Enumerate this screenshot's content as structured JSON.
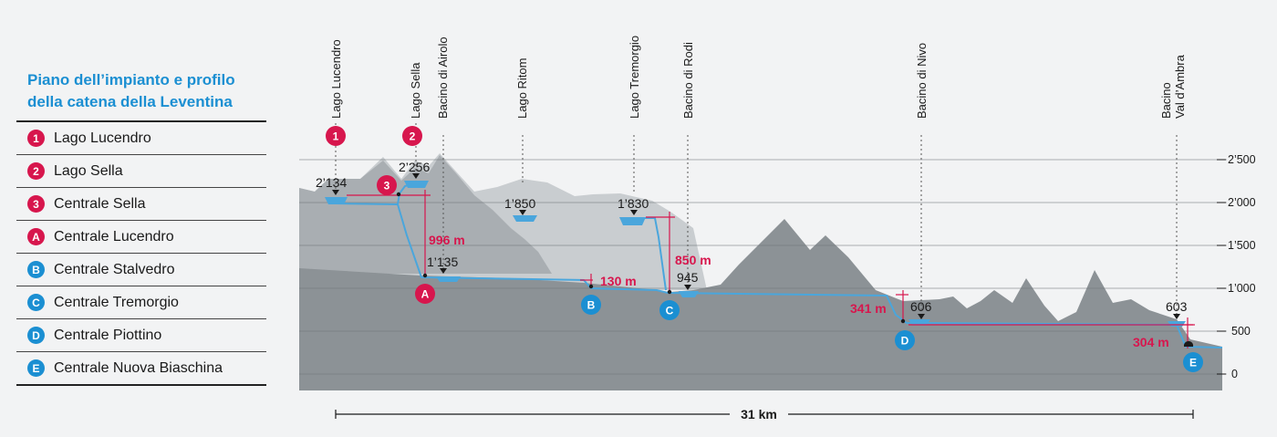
{
  "legend": {
    "title_line1": "Piano dell’impianto e profilo",
    "title_line2": "della catena della Leventina",
    "items": [
      {
        "marker": "1",
        "label": "Lago Lucendro",
        "color": "#d7164d"
      },
      {
        "marker": "2",
        "label": "Lago Sella",
        "color": "#d7164d"
      },
      {
        "marker": "3",
        "label": "Centrale Sella",
        "color": "#d7164d"
      },
      {
        "marker": "A",
        "label": "Centrale Lucendro",
        "color": "#d7164d"
      },
      {
        "marker": "B",
        "label": "Centrale Stalvedro",
        "color": "#1b8fd2"
      },
      {
        "marker": "C",
        "label": "Centrale Tremorgio",
        "color": "#1b8fd2"
      },
      {
        "marker": "D",
        "label": "Centrale Piottino",
        "color": "#1b8fd2"
      },
      {
        "marker": "E",
        "label": "Centrale Nuova Biaschina",
        "color": "#1b8fd2"
      }
    ]
  },
  "profile": {
    "y_axis_ticks": [
      "2’500",
      "2’000",
      "1’500",
      "1’000",
      "500",
      "0"
    ],
    "lakes": [
      "Lago Lucendro",
      "Lago Sella",
      "Bacino di Airolo",
      "Lago Ritom",
      "Lago Tremorgio",
      "Bacino di Rodi",
      "Bacino di Nivo",
      "Bacino",
      "Val d’Ambra"
    ],
    "elevations": [
      "2’134",
      "2’256",
      "1’135",
      "1’850",
      "1’830",
      "945",
      "606",
      "603"
    ],
    "heads": [
      "996 m",
      "130 m",
      "850 m",
      "341 m",
      "304 m"
    ],
    "markers": [
      "1",
      "2",
      "3",
      "A",
      "B",
      "C",
      "D",
      "E"
    ],
    "distance": "31 km",
    "colors": {
      "water": "#4aa6dc",
      "accent_red": "#d7164d",
      "accent_blue": "#1b8fd2"
    }
  }
}
